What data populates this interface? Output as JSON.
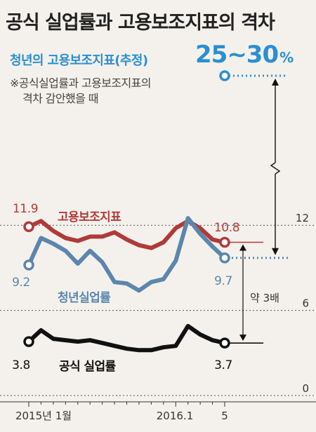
{
  "header": {
    "title": "공식 실업률과 고용보조지표의 격차"
  },
  "estimate": {
    "label": "청년의 고용보조지표(추정)",
    "value": "25~30",
    "unit": "%",
    "note_line1": "※공식실업률과 고용보조지표의",
    "note_line2": "격차 감안했을 때"
  },
  "colors": {
    "background": "#f4f1ec",
    "subsidiary": "#b03a3a",
    "youth": "#5b86ad",
    "official": "#111111",
    "estimate": "#2b8fd1",
    "grid": "#555555"
  },
  "gap_label": "약 3배",
  "chart_data": {
    "type": "line",
    "title": "공식 실업률과 고용보조지표의 격차",
    "x": [
      "2015.1",
      "2015.2",
      "2015.3",
      "2015.4",
      "2015.5",
      "2015.6",
      "2015.7",
      "2015.8",
      "2015.9",
      "2015.10",
      "2015.11",
      "2015.12",
      "2016.1",
      "2016.2",
      "2016.3",
      "2016.4",
      "2016.5"
    ],
    "xticks": [
      "2015년 1월",
      "2016.1",
      "5"
    ],
    "yticks": [
      "0",
      "6",
      "12"
    ],
    "ylim": [
      0,
      13
    ],
    "grid": "horizontal dotted",
    "series": [
      {
        "name": "고용보조지표",
        "values": [
          11.9,
          12.3,
          11.6,
          11.1,
          10.9,
          11.2,
          11.2,
          11.5,
          11.0,
          10.6,
          10.4,
          10.8,
          11.8,
          12.3,
          11.8,
          11.0,
          10.8
        ],
        "start_label": "11.9",
        "end_label": "10.8"
      },
      {
        "name": "청년실업률",
        "values": [
          9.2,
          11.1,
          10.7,
          10.2,
          9.3,
          10.2,
          9.4,
          8.0,
          7.9,
          7.4,
          8.0,
          8.2,
          9.5,
          12.5,
          11.4,
          10.5,
          9.7
        ],
        "start_label": "9.2",
        "end_label": "9.7"
      },
      {
        "name": "공식 실업률",
        "values": [
          3.8,
          4.6,
          4.0,
          3.9,
          3.8,
          3.9,
          3.7,
          3.5,
          3.3,
          3.2,
          3.2,
          3.4,
          3.5,
          4.9,
          4.3,
          3.9,
          3.7
        ],
        "start_label": "3.8",
        "end_label": "3.7"
      }
    ]
  }
}
